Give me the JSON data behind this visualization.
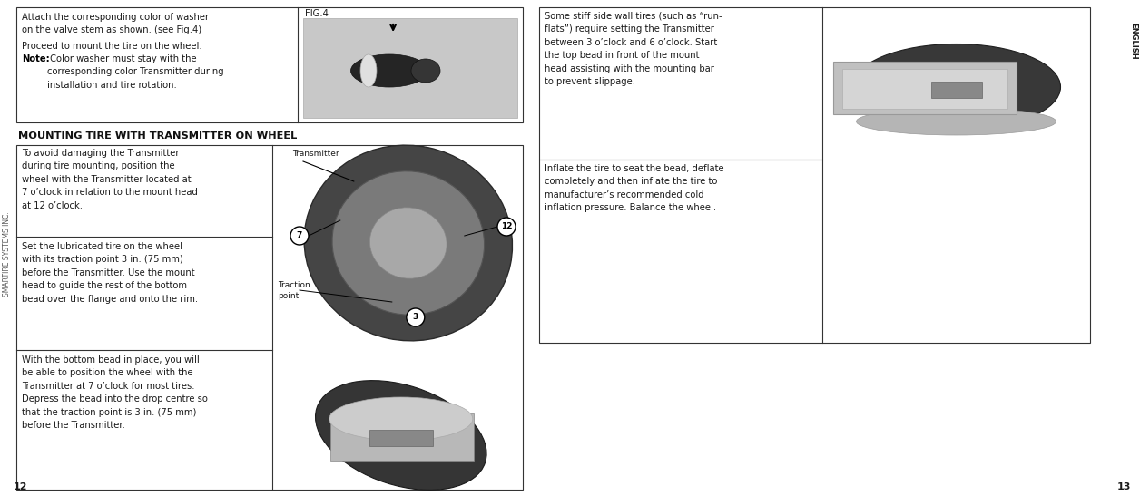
{
  "bg_color": "#ffffff",
  "sidebar_text": "SMARTIRE SYSTEMS INC.",
  "page_num_left": "12",
  "page_num_right": "13",
  "english_label": "ENGLISH",
  "top_left_box": {
    "text1": "Attach the corresponding color of washer\non the valve stem as shown. (see Fig.4)",
    "text2": "Proceed to mount the tire on the wheel.",
    "text3_bold": "Note:",
    "text3_rest": " Color washer must stay with the\ncorresponding color Transmitter during\ninstallation and tire rotation.",
    "fig_label": "FIG.4"
  },
  "heading": "MOUNTING TIRE WITH TRANSMITTER ON WHEEL",
  "bottom_left_rows": [
    "To avoid damaging the Transmitter\nduring tire mounting, position the\nwheel with the Transmitter located at\n7 o’clock in relation to the mount head\nat 12 o’clock.",
    "Set the lubricated tire on the wheel\nwith its traction point 3 in. (75 mm)\nbefore the Transmitter. Use the mount\nhead to guide the rest of the bottom\nbead over the flange and onto the rim.",
    "With the bottom bead in place, you will\nbe able to position the wheel with the\nTransmitter at 7 o’clock for most tires.\nDepress the bead into the drop centre so\nthat the traction point is 3 in. (75 mm)\nbefore the Transmitter."
  ],
  "right_top_rows": [
    "Some stiff side wall tires (such as “run-\nflats”) require setting the Transmitter\nbetween 3 o’clock and 6 o’clock. Start\nthe top bead in front of the mount\nhead assisting with the mounting bar\nto prevent slippage.",
    "Inflate the tire to seat the bead, deflate\ncompletely and then inflate the tire to\nmanufacturer’s recommended cold\ninflation pressure. Balance the wheel."
  ],
  "diagram_labels": {
    "transmitter": "Transmitter",
    "traction": "Traction\npoint",
    "num7": "7",
    "num12": "12",
    "num3": "3"
  },
  "colors": {
    "box_border": "#333333",
    "text_main": "#1a1a1a",
    "text_bold": "#000000",
    "heading_color": "#111111",
    "sidebar_color": "#555555"
  }
}
